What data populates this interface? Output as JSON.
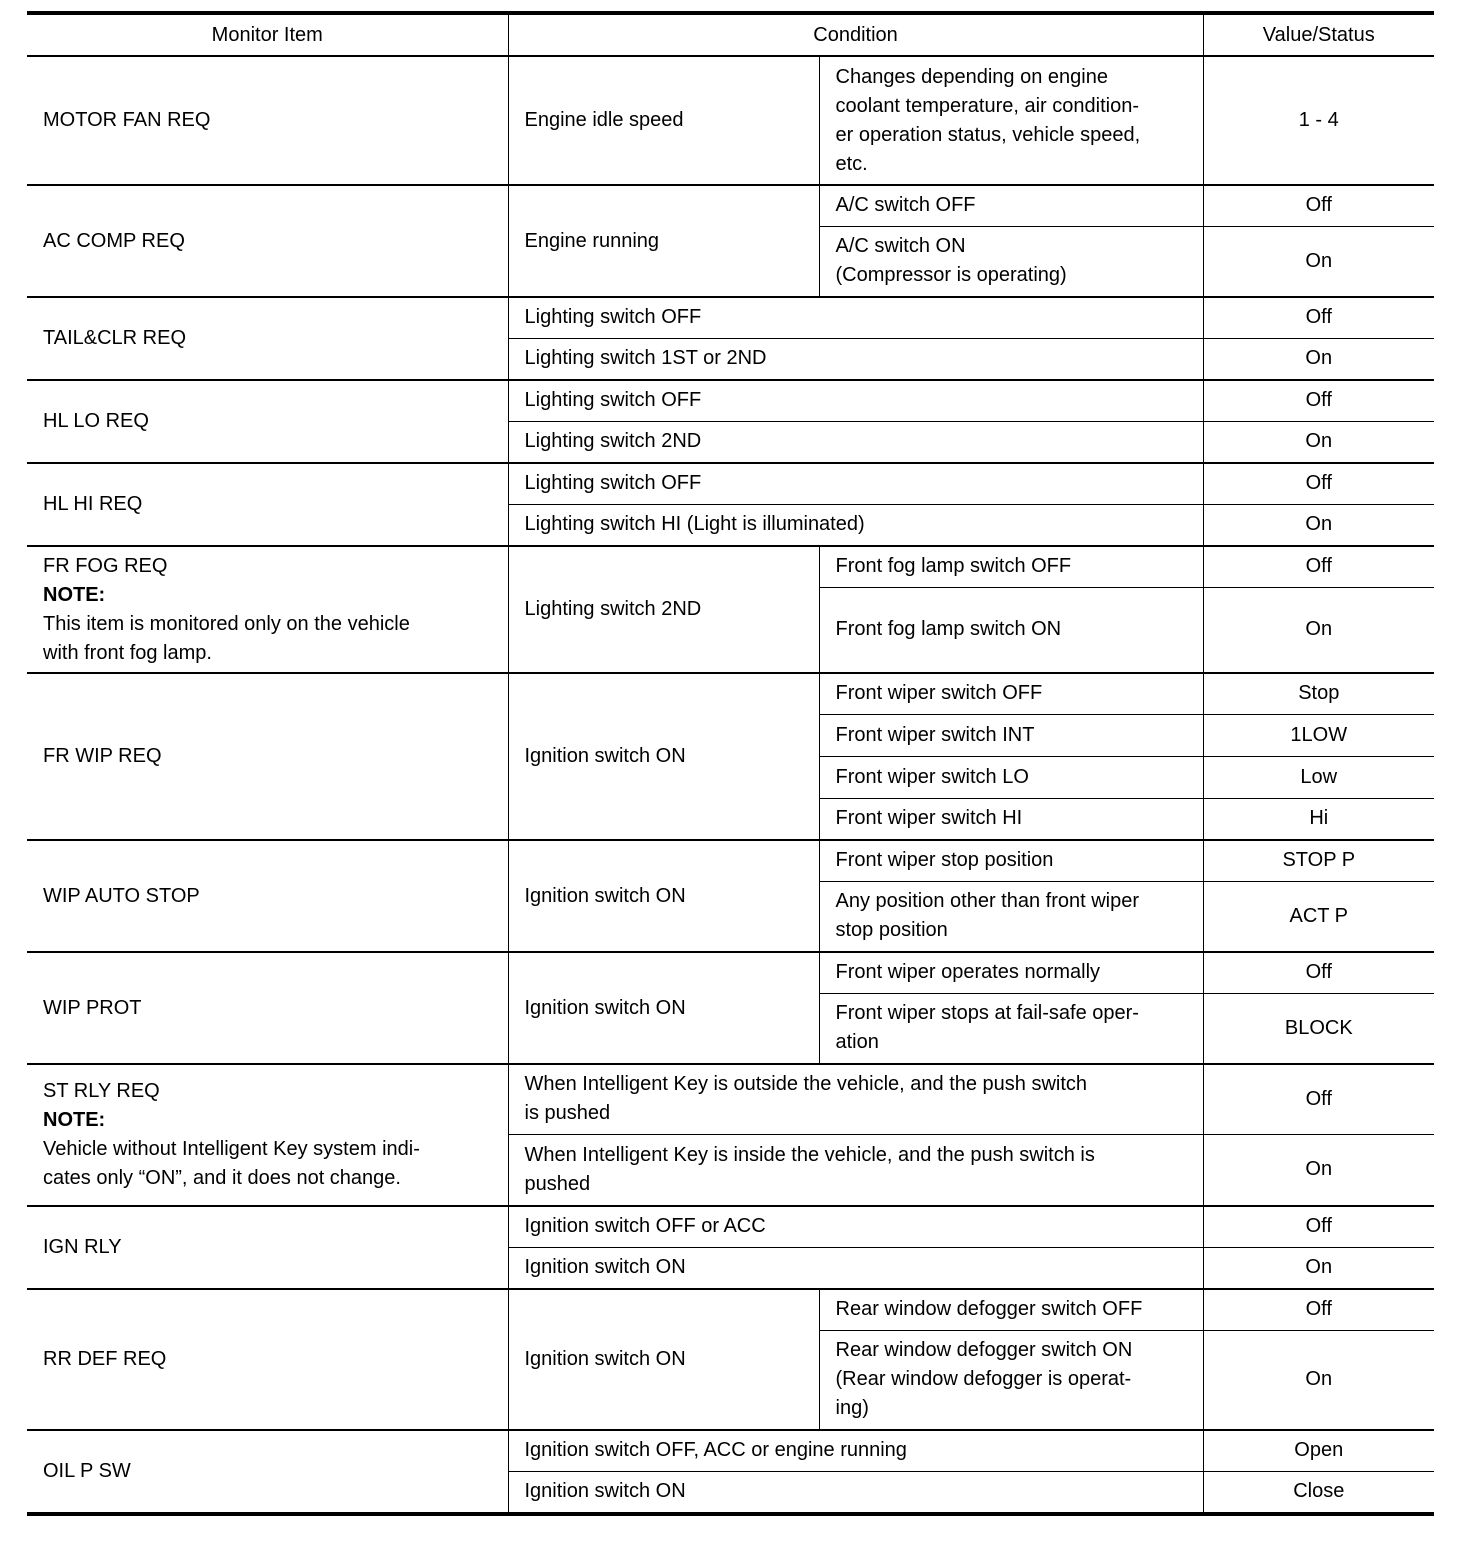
{
  "headers": [
    "Monitor Item",
    "Condition",
    "Value/Status"
  ],
  "groups": [
    {
      "item": "MOTOR FAN REQ",
      "type": "split",
      "cond": "Engine idle speed",
      "rows": [
        {
          "sub": "Changes depending on engine\ncoolant temperature, air condition-\ner operation status, vehicle speed,\netc.",
          "value": "1 - 4",
          "h": 131
        }
      ]
    },
    {
      "item": "AC COMP REQ",
      "type": "split",
      "cond": "Engine running",
      "rows": [
        {
          "sub": "A/C switch OFF",
          "value": "Off",
          "h": 43
        },
        {
          "sub": "A/C switch ON\n(Compressor is operating)",
          "value": "On",
          "h": 72
        }
      ]
    },
    {
      "item": "TAIL&CLR REQ",
      "type": "full",
      "rows": [
        {
          "cond": "Lighting switch OFF",
          "value": "Off",
          "h": 43
        },
        {
          "cond": "Lighting switch 1ST or 2ND",
          "value": "On",
          "h": 43
        }
      ]
    },
    {
      "item": "HL LO REQ",
      "type": "full",
      "rows": [
        {
          "cond": "Lighting switch OFF",
          "value": "Off",
          "h": 43
        },
        {
          "cond": "Lighting switch 2ND",
          "value": "On",
          "h": 43
        }
      ]
    },
    {
      "item": "HL HI REQ",
      "type": "full",
      "rows": [
        {
          "cond": "Lighting switch OFF",
          "value": "Off",
          "h": 43
        },
        {
          "cond": "Lighting switch HI (Light is illuminated)",
          "value": "On",
          "h": 43
        }
      ]
    },
    {
      "item": "FR FOG REQ",
      "note_label": "NOTE:",
      "note": "This item is monitored only on the vehicle\nwith front fog lamp.",
      "type": "split",
      "cond": "Lighting switch 2ND",
      "rows": [
        {
          "sub": "Front fog lamp switch OFF",
          "value": "Off",
          "h": 43
        },
        {
          "sub": "Front fog lamp switch ON",
          "value": "On",
          "h": 87
        }
      ]
    },
    {
      "item": "FR WIP REQ",
      "type": "split",
      "cond": "Ignition switch ON",
      "rows": [
        {
          "sub": "Front wiper switch OFF",
          "value": "Stop",
          "h": 43
        },
        {
          "sub": "Front wiper switch INT",
          "value": "1LOW",
          "h": 43
        },
        {
          "sub": "Front wiper switch LO",
          "value": "Low",
          "h": 43
        },
        {
          "sub": "Front wiper switch HI",
          "value": "Hi",
          "h": 43
        }
      ]
    },
    {
      "item": "WIP AUTO STOP",
      "type": "split",
      "cond": "Ignition switch ON",
      "rows": [
        {
          "sub": "Front wiper stop position",
          "value": "STOP P",
          "h": 43
        },
        {
          "sub": "Any position other than front wiper\nstop position",
          "value": "ACT P",
          "h": 72
        }
      ]
    },
    {
      "item": "WIP PROT",
      "type": "split",
      "cond": "Ignition switch ON",
      "rows": [
        {
          "sub": "Front wiper operates normally",
          "value": "Off",
          "h": 43
        },
        {
          "sub": "Front wiper stops at fail-safe oper-\nation",
          "value": "BLOCK",
          "h": 72
        }
      ]
    },
    {
      "item": "ST RLY REQ",
      "note_label": "NOTE:",
      "note": "Vehicle without Intelligent Key system indi-\ncates only “ON”, and it does not change.",
      "type": "full",
      "rows": [
        {
          "cond": "When Intelligent Key is outside the vehicle, and the push switch\nis pushed",
          "value": "Off",
          "h": 72
        },
        {
          "cond": "When Intelligent Key is inside the vehicle, and the push switch is\npushed",
          "value": "On",
          "h": 73
        }
      ]
    },
    {
      "item": "IGN RLY",
      "type": "full",
      "rows": [
        {
          "cond": "Ignition switch OFF or ACC",
          "value": "Off",
          "h": 43
        },
        {
          "cond": "Ignition switch ON",
          "value": "On",
          "h": 43
        }
      ]
    },
    {
      "item": "RR DEF REQ",
      "type": "split",
      "cond": "Ignition switch ON",
      "rows": [
        {
          "sub": "Rear window defogger switch OFF",
          "value": "Off",
          "h": 43
        },
        {
          "sub": "Rear window defogger switch ON\n(Rear window defogger is operat-\ning)",
          "value": "On",
          "h": 101
        }
      ]
    },
    {
      "item": "OIL P SW",
      "type": "full",
      "rows": [
        {
          "cond": "Ignition switch OFF, ACC or engine running",
          "value": "Open",
          "h": 43
        },
        {
          "cond": "Ignition switch ON",
          "value": "Close",
          "h": 44
        }
      ]
    }
  ]
}
